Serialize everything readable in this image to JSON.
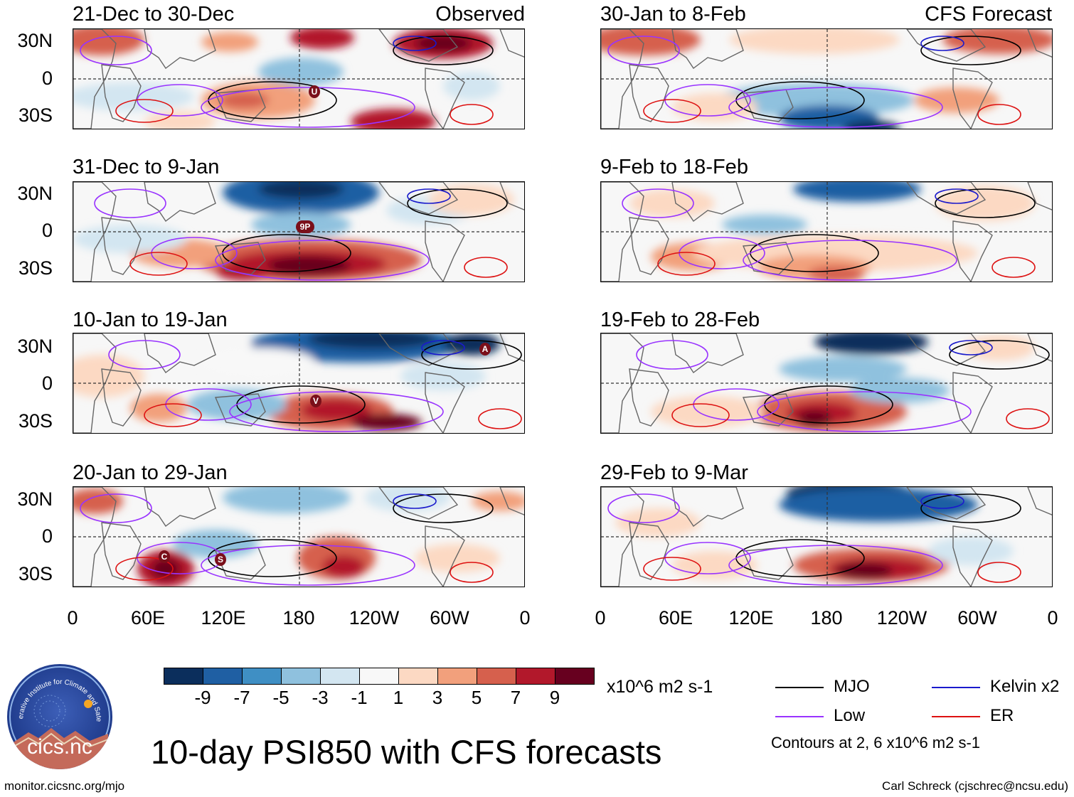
{
  "header": {
    "observed_tag": "Observed",
    "forecast_tag": "CFS Forecast"
  },
  "panels": {
    "left": [
      {
        "period": "21-Dec to 30-Dec",
        "storms": [
          {
            "code": "U"
          }
        ]
      },
      {
        "period": "31-Dec to 9-Jan",
        "storms": [
          {
            "code": "9P"
          }
        ]
      },
      {
        "period": "10-Jan to 19-Jan",
        "storms": [
          {
            "code": "V"
          },
          {
            "code": "A"
          }
        ]
      },
      {
        "period": "20-Jan to 29-Jan",
        "storms": [
          {
            "code": "C"
          },
          {
            "code": "S"
          }
        ]
      }
    ],
    "right": [
      {
        "period": "30-Jan to 8-Feb"
      },
      {
        "period": "9-Feb to 18-Feb"
      },
      {
        "period": "19-Feb to 28-Feb"
      },
      {
        "period": "29-Feb to 9-Mar"
      }
    ]
  },
  "axes": {
    "lat_labels": [
      "30N",
      "0",
      "30S"
    ],
    "lon_labels": [
      "0",
      "60E",
      "120E",
      "180",
      "120W",
      "60W",
      "0"
    ]
  },
  "colorbar": {
    "colors": [
      "#0b2e5c",
      "#1f5fa3",
      "#3f8fc4",
      "#8fc1de",
      "#d3e6f1",
      "#f8f8f8",
      "#fcd9c3",
      "#f2a07c",
      "#d6604d",
      "#b2182b",
      "#67001f"
    ],
    "labels": [
      "-9",
      "-7",
      "-5",
      "-3",
      "-1",
      "1",
      "3",
      "5",
      "7",
      "9"
    ],
    "units": "x10^6 m2 s-1"
  },
  "legend": {
    "items": [
      {
        "label": "MJO",
        "color": "#000000"
      },
      {
        "label": "Kelvin x2",
        "color": "#1a1acc"
      },
      {
        "label": "Low",
        "color": "#9933ff"
      },
      {
        "label": "ER",
        "color": "#dd1111"
      }
    ],
    "contour_note": "Contours at 2, 6 x10^6 m2 s-1"
  },
  "title": "10-day PSI850 with CFS forecasts",
  "footer": {
    "url": "monitor.cicsnc.org/mjo",
    "credit": "Carl Schreck (cjschrec@ncsu.edu)"
  },
  "logo": {
    "ring_text": "Cooperative Institute for Climate and Satellites",
    "name": "cics.nc"
  }
}
